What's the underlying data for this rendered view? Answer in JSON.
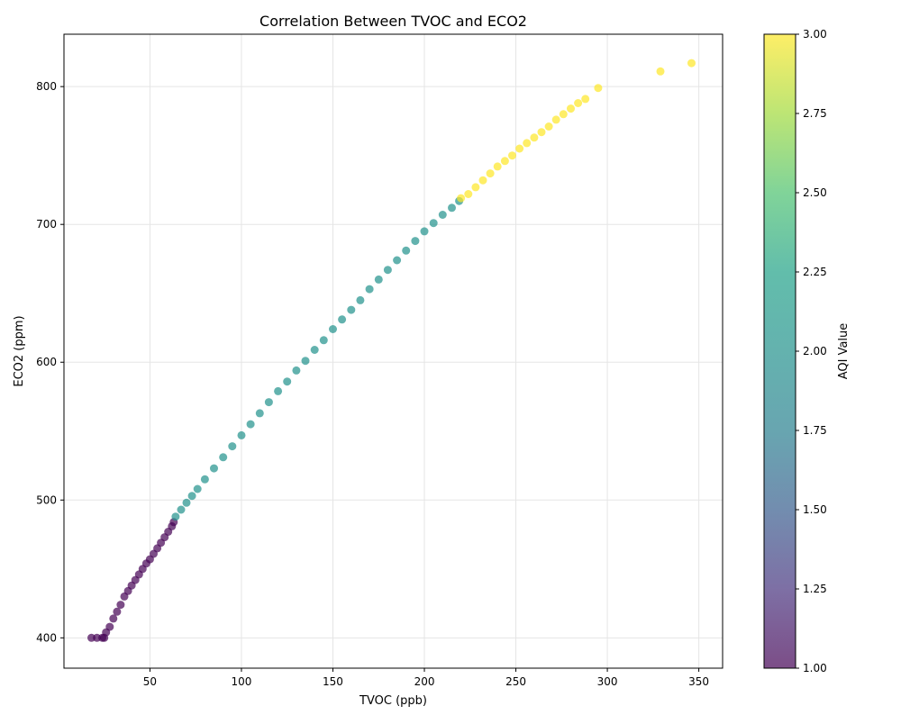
{
  "chart_data": {
    "type": "scatter",
    "title": "Correlation Between TVOC and ECO2",
    "xlabel": "TVOC (ppb)",
    "ylabel": "ECO2 (ppm)",
    "xlim": [
      3,
      363
    ],
    "ylim": [
      378,
      838
    ],
    "xticks": [
      50,
      100,
      150,
      200,
      250,
      300,
      350
    ],
    "yticks": [
      400,
      500,
      600,
      700,
      800
    ],
    "grid": true,
    "colorbar": {
      "label": "AQI Value",
      "range": [
        1.0,
        3.0
      ],
      "ticks": [
        "1.00",
        "1.25",
        "1.50",
        "1.75",
        "2.00",
        "2.25",
        "2.50",
        "2.75",
        "3.00"
      ],
      "colormap": "viridis",
      "alpha": 0.7
    },
    "series": [
      {
        "aqi": 1,
        "color": "#440154",
        "points": [
          [
            18,
            400
          ],
          [
            21,
            400
          ],
          [
            24,
            400
          ],
          [
            25,
            400
          ],
          [
            26,
            404
          ],
          [
            28,
            408
          ],
          [
            30,
            414
          ],
          [
            32,
            419
          ],
          [
            34,
            424
          ],
          [
            36,
            430
          ],
          [
            38,
            434
          ],
          [
            40,
            438
          ],
          [
            42,
            442
          ],
          [
            44,
            446
          ],
          [
            46,
            450
          ],
          [
            48,
            454
          ],
          [
            50,
            457
          ],
          [
            52,
            461
          ],
          [
            54,
            465
          ],
          [
            56,
            469
          ],
          [
            58,
            473
          ],
          [
            60,
            477
          ],
          [
            62,
            481
          ],
          [
            63,
            484
          ]
        ]
      },
      {
        "aqi": 2,
        "color": "#21918c",
        "points": [
          [
            64,
            488
          ],
          [
            67,
            493
          ],
          [
            70,
            498
          ],
          [
            73,
            503
          ],
          [
            76,
            508
          ],
          [
            80,
            515
          ],
          [
            85,
            523
          ],
          [
            90,
            531
          ],
          [
            95,
            539
          ],
          [
            100,
            547
          ],
          [
            105,
            555
          ],
          [
            110,
            563
          ],
          [
            115,
            571
          ],
          [
            120,
            579
          ],
          [
            125,
            586
          ],
          [
            130,
            594
          ],
          [
            135,
            601
          ],
          [
            140,
            609
          ],
          [
            145,
            616
          ],
          [
            150,
            624
          ],
          [
            155,
            631
          ],
          [
            160,
            638
          ],
          [
            165,
            645
          ],
          [
            170,
            653
          ],
          [
            175,
            660
          ],
          [
            180,
            667
          ],
          [
            185,
            674
          ],
          [
            190,
            681
          ],
          [
            195,
            688
          ],
          [
            200,
            695
          ],
          [
            205,
            701
          ],
          [
            210,
            707
          ],
          [
            215,
            712
          ],
          [
            219,
            717
          ]
        ]
      },
      {
        "aqi": 3,
        "color": "#fde725",
        "points": [
          [
            220,
            719
          ],
          [
            224,
            722
          ],
          [
            228,
            727
          ],
          [
            232,
            732
          ],
          [
            236,
            737
          ],
          [
            240,
            742
          ],
          [
            244,
            746
          ],
          [
            248,
            750
          ],
          [
            252,
            755
          ],
          [
            256,
            759
          ],
          [
            260,
            763
          ],
          [
            264,
            767
          ],
          [
            268,
            771
          ],
          [
            272,
            776
          ],
          [
            276,
            780
          ],
          [
            280,
            784
          ],
          [
            284,
            788
          ],
          [
            288,
            791
          ],
          [
            295,
            799
          ],
          [
            329,
            811
          ],
          [
            346,
            817
          ]
        ]
      }
    ]
  }
}
